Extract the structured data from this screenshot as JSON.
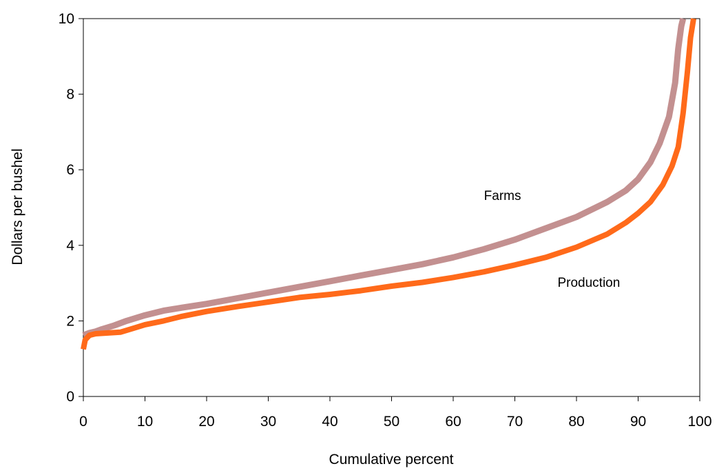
{
  "chart_data": {
    "type": "line",
    "title": "",
    "xlabel": "Cumulative percent",
    "ylabel": "Dollars per bushel",
    "xlim": [
      0,
      100
    ],
    "ylim": [
      0,
      10
    ],
    "x_ticks": [
      0,
      10,
      20,
      30,
      40,
      50,
      60,
      70,
      80,
      90,
      100
    ],
    "y_ticks": [
      0,
      2,
      4,
      6,
      8,
      10
    ],
    "grid": false,
    "legend": "none (series labeled directly on chart)",
    "series": [
      {
        "name": "Farms",
        "color": "#c08a8a",
        "points": [
          [
            0,
            1.62
          ],
          [
            1,
            1.68
          ],
          [
            2,
            1.72
          ],
          [
            3,
            1.78
          ],
          [
            5,
            1.88
          ],
          [
            7,
            2.0
          ],
          [
            10,
            2.15
          ],
          [
            13,
            2.27
          ],
          [
            16,
            2.35
          ],
          [
            20,
            2.45
          ],
          [
            25,
            2.6
          ],
          [
            30,
            2.75
          ],
          [
            35,
            2.9
          ],
          [
            40,
            3.05
          ],
          [
            45,
            3.2
          ],
          [
            50,
            3.35
          ],
          [
            55,
            3.5
          ],
          [
            60,
            3.68
          ],
          [
            65,
            3.9
          ],
          [
            70,
            4.15
          ],
          [
            75,
            4.45
          ],
          [
            80,
            4.75
          ],
          [
            85,
            5.15
          ],
          [
            88,
            5.45
          ],
          [
            90,
            5.75
          ],
          [
            92,
            6.2
          ],
          [
            93.5,
            6.7
          ],
          [
            95,
            7.4
          ],
          [
            96,
            8.3
          ],
          [
            96.5,
            9.2
          ],
          [
            97,
            9.8
          ],
          [
            97.3,
            10
          ]
        ]
      },
      {
        "name": "Production",
        "color": "#ff6a1a",
        "points": [
          [
            0,
            1.25
          ],
          [
            0.3,
            1.5
          ],
          [
            1,
            1.62
          ],
          [
            2,
            1.66
          ],
          [
            4,
            1.68
          ],
          [
            6,
            1.7
          ],
          [
            8,
            1.8
          ],
          [
            10,
            1.9
          ],
          [
            13,
            2.0
          ],
          [
            16,
            2.12
          ],
          [
            20,
            2.25
          ],
          [
            25,
            2.38
          ],
          [
            30,
            2.5
          ],
          [
            35,
            2.62
          ],
          [
            40,
            2.7
          ],
          [
            45,
            2.8
          ],
          [
            50,
            2.92
          ],
          [
            55,
            3.02
          ],
          [
            60,
            3.15
          ],
          [
            65,
            3.3
          ],
          [
            70,
            3.48
          ],
          [
            75,
            3.68
          ],
          [
            80,
            3.95
          ],
          [
            85,
            4.3
          ],
          [
            88,
            4.6
          ],
          [
            90,
            4.85
          ],
          [
            92,
            5.15
          ],
          [
            94,
            5.6
          ],
          [
            95.5,
            6.1
          ],
          [
            96.5,
            6.6
          ],
          [
            97.3,
            7.5
          ],
          [
            98,
            8.6
          ],
          [
            98.5,
            9.5
          ],
          [
            99,
            10
          ]
        ]
      }
    ],
    "annotations": [
      {
        "text": "Farms",
        "x": 68,
        "y": 5.2
      },
      {
        "text": "Production",
        "x": 82,
        "y": 2.9
      }
    ]
  }
}
